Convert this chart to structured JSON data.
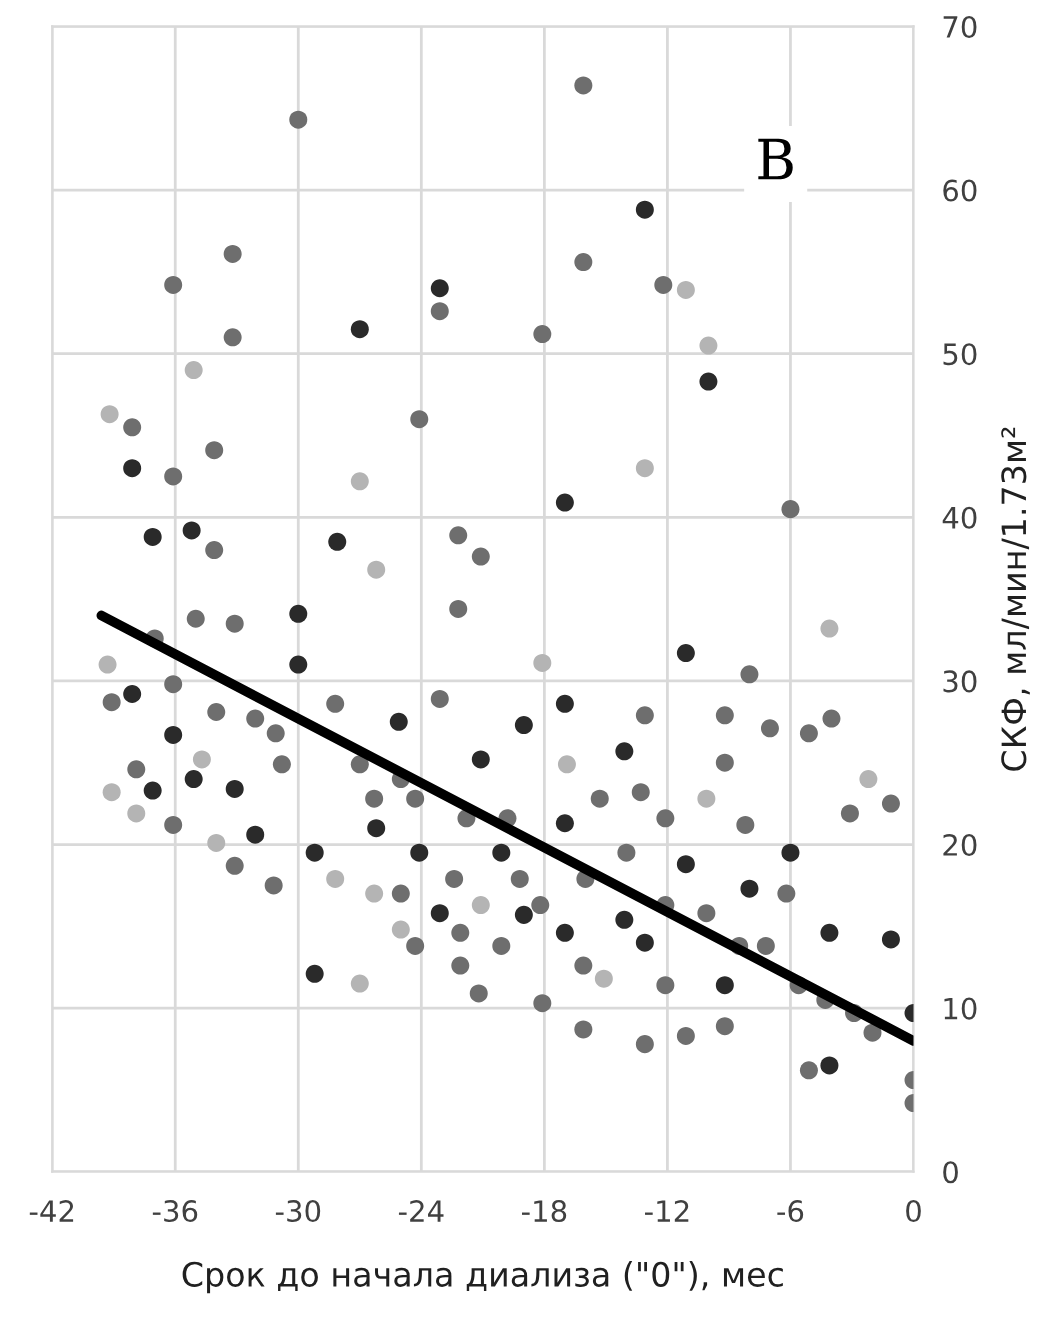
{
  "chart_data": {
    "type": "scatter",
    "xlabel": "Срок до начала диализа (\"0\"), мес",
    "ylabel": "СКФ, мл/мин/1.73м²",
    "annotations": [
      "B"
    ],
    "xlim": [
      -42,
      0
    ],
    "xticks": [
      -42,
      -36,
      -30,
      -24,
      -18,
      -12,
      -6,
      0
    ],
    "ylim": [
      0,
      70
    ],
    "yticks": [
      0,
      10,
      20,
      30,
      40,
      50,
      60,
      70
    ],
    "grid": true,
    "series": [
      {
        "color": "#6e6e6e",
        "marker": "circle",
        "x": [
          -16.1,
          -30.0,
          -33.2,
          -36.1,
          -16.1,
          -12.2,
          -23.1,
          -33.2,
          -18.1,
          -24.1,
          -38.1,
          -34.1,
          -36.1,
          -6.0,
          -34.1,
          -22.2,
          -21.1,
          -22.2,
          -39.1,
          -36.1,
          -36.1,
          -33.1,
          -31.2,
          -30.8,
          -31.1,
          -28.2,
          -32.1,
          -34.0,
          -37.9,
          -37.0,
          -35.0,
          -33.1,
          -23.1,
          -22.1,
          -21.2,
          -18.1,
          -16.1,
          -16.1,
          -13.1,
          -13.1,
          -11.1,
          -9.2,
          -8.0,
          -9.2,
          -7.0,
          -5.1,
          -4.0,
          -5.1,
          -3.1,
          -1.1,
          0,
          0,
          -2.0,
          -7.2,
          -9.2,
          -12.1,
          -16.0,
          -14.0,
          -12.1,
          -10.1,
          -6.2,
          -4.3,
          -2.9,
          -5.6,
          -8.5,
          -25.0,
          -26.3,
          -24.3,
          -27.0,
          -21.8,
          -19.8,
          -22.4,
          -25.0,
          -19.2,
          -18.2,
          -20.1,
          -22.1,
          -24.3,
          -15.3,
          -13.3,
          -12.1,
          -8.2
        ],
        "values": [
          66.4,
          64.3,
          56.1,
          54.2,
          55.6,
          54.2,
          52.6,
          51.0,
          51.2,
          46.0,
          45.5,
          44.1,
          42.5,
          40.5,
          38.0,
          38.9,
          37.6,
          34.4,
          28.7,
          29.8,
          21.2,
          18.7,
          17.5,
          24.9,
          26.8,
          28.6,
          27.7,
          28.1,
          24.6,
          32.6,
          33.8,
          33.5,
          28.9,
          12.6,
          10.9,
          10.3,
          8.7,
          12.6,
          27.9,
          7.8,
          8.3,
          27.9,
          30.4,
          25.0,
          27.1,
          26.8,
          27.7,
          6.2,
          21.9,
          22.5,
          4.2,
          5.6,
          8.5,
          13.8,
          8.9,
          11.4,
          17.9,
          19.5,
          16.3,
          15.8,
          17.0,
          10.5,
          9.7,
          11.4,
          13.8,
          24.0,
          22.8,
          22.8,
          24.9,
          21.6,
          21.6,
          17.9,
          17.0,
          17.9,
          16.3,
          13.8,
          14.6,
          13.8,
          22.8,
          23.2,
          21.6,
          21.2
        ]
      },
      {
        "color": "#2a2a2a",
        "marker": "circle",
        "x": [
          -13.1,
          -23.1,
          -27.0,
          -10.0,
          -38.1,
          -17.0,
          -35.2,
          -37.1,
          -28.1,
          -30.0,
          -11.1,
          -38.1,
          -36.1,
          -35.1,
          -37.1,
          -33.1,
          -32.1,
          -29.2,
          -29.2,
          -30.0,
          -26.2,
          -25.1,
          -24.1,
          -23.1,
          -21.1,
          -20.1,
          -19.0,
          -17.0,
          -17.0,
          -19.0,
          -17.0,
          -14.1,
          -14.1,
          -13.1,
          -11.1,
          -8.0,
          -9.2,
          -6.0,
          -4.1,
          -4.1,
          -1.1,
          0
        ],
        "values": [
          58.8,
          54.0,
          51.5,
          48.3,
          43.0,
          40.9,
          39.2,
          38.8,
          38.5,
          34.1,
          31.7,
          29.2,
          26.7,
          24.0,
          23.3,
          23.4,
          20.6,
          19.5,
          12.1,
          31.0,
          21.0,
          27.5,
          19.5,
          15.8,
          25.2,
          19.5,
          27.3,
          28.6,
          21.3,
          15.7,
          14.6,
          25.7,
          15.4,
          14.0,
          18.8,
          17.3,
          11.4,
          19.5,
          14.6,
          6.5,
          14.2,
          9.7
        ]
      },
      {
        "color": "#b4b4b4",
        "marker": "circle",
        "x": [
          -11.1,
          -10.0,
          -35.1,
          -39.2,
          -13.1,
          -27.0,
          -26.2,
          -4.1,
          -39.1,
          -34.0,
          -27.0,
          -18.1,
          -15.1,
          -2.2,
          -21.1,
          -25.0,
          -26.3,
          -28.2,
          -34.7,
          -37.9,
          -39.3,
          -16.9,
          -10.1
        ],
        "values": [
          53.9,
          50.5,
          49.0,
          46.3,
          43.0,
          42.2,
          36.8,
          33.2,
          23.2,
          20.1,
          11.5,
          31.1,
          11.8,
          24.0,
          16.3,
          14.8,
          17.0,
          17.9,
          25.2,
          21.9,
          31.0,
          24.9,
          22.8
        ]
      },
      {
        "type": "line",
        "marker": "none",
        "color": "#000000",
        "x": [
          -39.6,
          0
        ],
        "values": [
          34,
          8
        ]
      }
    ]
  }
}
